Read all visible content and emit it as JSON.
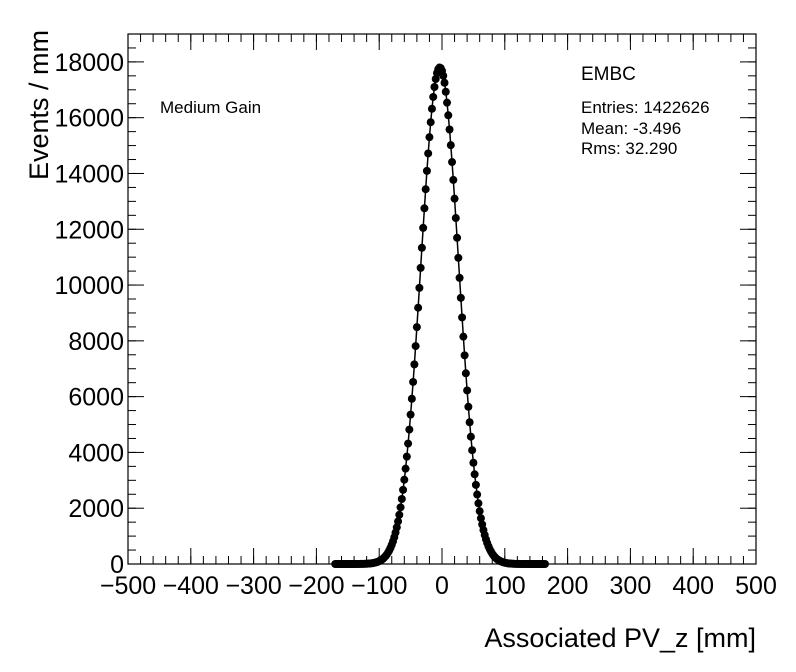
{
  "chart_data": {
    "type": "scatter",
    "xlabel": "Associated PV_z [mm]",
    "ylabel": "Events / mm",
    "xlim": [
      -500,
      500
    ],
    "ylim": [
      0,
      19000
    ],
    "xticks": [
      -500,
      -400,
      -300,
      -200,
      -100,
      0,
      100,
      200,
      300,
      400,
      500
    ],
    "xtick_labels": [
      "−500",
      "−400",
      "−300",
      "−200",
      "−100",
      "0",
      "100",
      "200",
      "300",
      "400",
      "500"
    ],
    "yticks": [
      0,
      2000,
      4000,
      6000,
      8000,
      10000,
      12000,
      14000,
      16000,
      18000
    ],
    "ytick_labels": [
      "0",
      "2000",
      "4000",
      "6000",
      "8000",
      "10000",
      "12000",
      "14000",
      "16000",
      "18000"
    ],
    "grid": false,
    "annotations": {
      "gain": "Medium Gain",
      "title": "EMBC",
      "entries": "Entries: 1422626",
      "mean": "Mean: -3.496",
      "rms": "Rms: 32.290"
    },
    "series": [
      {
        "distribution": "gaussian",
        "mean": -3.5,
        "sigma": 30.0,
        "peak": 17800,
        "x_range": [
          -170,
          165
        ],
        "bin_width": 2
      }
    ]
  }
}
